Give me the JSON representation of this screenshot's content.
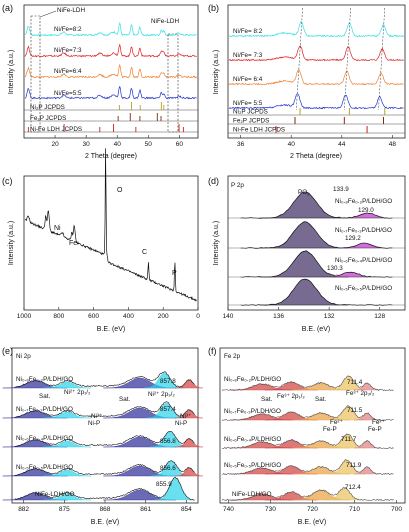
{
  "panels": [
    {
      "id": "a",
      "letter": "(a)",
      "xlabel": "2 Theta (degree)",
      "ylabel": "Intensity (a.u.)",
      "xticks": [
        "20",
        "30",
        "40",
        "50",
        "60"
      ],
      "xlim": [
        10,
        66
      ],
      "annotations": [
        "NiFe-LDH",
        "NiFe-LDH"
      ],
      "series": [
        {
          "name": "Ni/Fe=8:2",
          "color": "#35e0e8"
        },
        {
          "name": "Ni/Fe=7:3",
          "color": "#e02020"
        },
        {
          "name": "Ni/Fe=6:4",
          "color": "#f08030"
        },
        {
          "name": "Ni/Fe=5:5",
          "color": "#2233cc"
        },
        {
          "name": "Ni₂P JCPDS",
          "color": "#b8a020"
        },
        {
          "name": "Fe₂P JCPDS",
          "color": "#7a2b10"
        },
        {
          "name": "Ni-Fe LDH JCPDS",
          "color": "#cc2020"
        }
      ]
    },
    {
      "id": "b",
      "letter": "(b)",
      "xlabel": "2 Theta (degree)",
      "ylabel": "Intensity (a.u.)",
      "xticks": [
        "36",
        "40",
        "44",
        "48"
      ],
      "xlim": [
        35,
        49
      ],
      "series": [
        {
          "name": "Ni/Fe= 8:2",
          "color": "#35e0e8"
        },
        {
          "name": "Ni/Fe= 7:3",
          "color": "#e02020"
        },
        {
          "name": "Ni/Fe= 6:4",
          "color": "#f08030"
        },
        {
          "name": "Ni/Fe= 5:5",
          "color": "#2233cc"
        },
        {
          "name": "Ni₂P JCPDS",
          "color": "#b8a020"
        },
        {
          "name": "Fe₂P JCPDS",
          "color": "#7a2b10"
        },
        {
          "name": "Ni-Fe LDH JCPDS",
          "color": "#cc2020"
        }
      ]
    },
    {
      "id": "c",
      "letter": "(c)",
      "xlabel": "B.E. (eV)",
      "ylabel": "Intensity (a.u.)",
      "xticks": [
        "1000",
        "800",
        "600",
        "400",
        "200",
        "0"
      ],
      "peaks": [
        "O",
        "Ni",
        "Fe",
        "C",
        "P"
      ]
    },
    {
      "id": "d",
      "letter": "(d)",
      "xlabel": "B.E. (eV)",
      "ylabel": "Intensity (a.u.)",
      "xticks": [
        "140",
        "136",
        "132",
        "128"
      ],
      "core": "P 2p",
      "pox": "PO",
      "pox_sub": "x",
      "samples": [
        {
          "label": "Ni₀.₈Fe₀.₂P/LDH/GO",
          "peak1": "133.9",
          "peak2": "129.0"
        },
        {
          "label": "Ni₀.₇Fe₀.₃P/LDH/GO",
          "peak2": "129.2"
        },
        {
          "label": "Ni₀.₆Fe₀.₄P/LDH/GO",
          "peak2": "130.3"
        },
        {
          "label": "Ni₀.₅Fe₀.₅P/LDH/GO"
        }
      ]
    },
    {
      "id": "e",
      "letter": "(e)",
      "xlabel": "B.E. (eV)",
      "ylabel": "Intensity (a.u.)",
      "xticks": [
        "882",
        "875",
        "868",
        "861",
        "854"
      ],
      "core": "Ni 2p",
      "samples": [
        {
          "label": "Ni₀.₈Fe₀.₂P/LDH/GO",
          "value": "857.8"
        },
        {
          "label": "Ni₀.₇Fe₀.₃P/LDH/GO",
          "value": "857.4"
        },
        {
          "label": "Ni₀.₆Fe₀.₄P/LDH/GO",
          "value": "856.8"
        },
        {
          "label": "Ni₀.₅Fe₀.₅P/LDH/GO",
          "value": "856.6"
        },
        {
          "label": "NiFe-LDH/GO",
          "value": "855.9"
        }
      ],
      "annotations": {
        "sat1": "Sat.",
        "ni2p12": "Ni²⁺ 2p₁/₂",
        "sat2": "Sat.",
        "ni2p32": "Ni²⁺ 2p₃/₂",
        "nip1": "Ni³⁺",
        "nip1b": "Ni-P",
        "nip2": "Ni³⁺",
        "nip2b": "Ni-P"
      }
    },
    {
      "id": "f",
      "letter": "(f)",
      "xlabel": "B.E. (eV)",
      "ylabel": "Intensity (a.u.)",
      "xticks": [
        "740",
        "730",
        "720",
        "710",
        "700"
      ],
      "core": "Fe 2p",
      "samples": [
        {
          "label": "Ni₀.₈Fe₀.₂P/LDH/GO",
          "value": "711.4"
        },
        {
          "label": "Ni₀.₇Fe₀.₃P/LDH/GO",
          "value": "711.5"
        },
        {
          "label": "Ni₀.₆Fe₀.₄P/LDH/GO",
          "value": "711.7"
        },
        {
          "label": "Ni₀.₅Fe₀.₅P/LDH/GO",
          "value": "711.9"
        },
        {
          "label": "NiFe-LDH/GO",
          "value": "712.4"
        }
      ],
      "annotations": {
        "sat": "Sat.",
        "fe2p12": "Fe³⁺ 2p₁/₂",
        "sat2": "Sat.",
        "fe2p32": "Fe³⁺ 2p₃/₂",
        "fe2a": "Fe²⁺",
        "fe2ab": "Fe-P",
        "fe2b": "Fe²⁺",
        "fe2bb": "Fe-P"
      }
    }
  ],
  "chart_data": [
    {
      "type": "line",
      "title": "",
      "xlabel": "2 Theta (degree)",
      "ylabel": "Intensity (a.u.)",
      "xlim": [
        10,
        66
      ],
      "series": [
        {
          "name": "Ni/Fe=8:2",
          "peaks_x": [
            11.4,
            40.8,
            44.6,
            47.3,
            54.2,
            55.0
          ]
        },
        {
          "name": "Ni/Fe=7:3",
          "peaks_x": [
            11.4,
            40.8,
            44.6,
            47.3,
            54.2,
            55.0
          ]
        },
        {
          "name": "Ni/Fe=6:4",
          "peaks_x": [
            11.4,
            40.8,
            44.6,
            47.3,
            54.2,
            55.0
          ]
        },
        {
          "name": "Ni/Fe=5:5",
          "peaks_x": [
            11.4,
            40.8,
            44.6,
            47.3,
            54.2,
            55.0
          ]
        },
        {
          "name": "Ni₂P JCPDS",
          "x": [
            40.7,
            44.6,
            47.4,
            54.2,
            55.0
          ]
        },
        {
          "name": "Fe₂P JCPDS",
          "x": [
            40.3,
            44.2,
            47.3,
            52.9,
            54.1
          ]
        },
        {
          "name": "Ni-Fe LDH JCPDS",
          "x": [
            11.4,
            22.9,
            34.4,
            38.8,
            46.0,
            59.9,
            61.3
          ]
        }
      ]
    },
    {
      "type": "line",
      "title": "",
      "xlabel": "2 Theta (degree)",
      "ylabel": "Intensity (a.u.)",
      "xlim": [
        35,
        49
      ],
      "series": [
        {
          "name": "Ni/Fe= 8:2",
          "peaks_x": [
            40.8,
            44.6,
            47.3
          ]
        },
        {
          "name": "Ni/Fe= 7:3",
          "peaks_x": [
            40.7,
            44.5,
            47.2
          ]
        },
        {
          "name": "Ni/Fe= 6:4",
          "peaks_x": [
            40.6,
            44.4,
            47.1
          ]
        },
        {
          "name": "Ni/Fe= 5:5",
          "peaks_x": [
            40.5,
            44.3,
            47.0
          ]
        }
      ]
    },
    {
      "type": "line",
      "title": "",
      "xlabel": "B.E. (eV)",
      "ylabel": "Intensity (a.u.)",
      "xlim": [
        1000,
        0
      ],
      "series": [
        {
          "name": "",
          "peaks": [
            {
              "label": "O",
              "x": 531
            },
            {
              "label": "Ni",
              "x": 856
            },
            {
              "label": "Fe",
              "x": 711
            },
            {
              "label": "C",
              "x": 285
            },
            {
              "label": "P",
              "x": 133
            }
          ]
        }
      ]
    },
    {
      "type": "line",
      "title": "",
      "xlabel": "B.E. (eV)",
      "ylabel": "Intensity (a.u.)",
      "xlim": [
        140,
        126
      ],
      "series": [
        {
          "name": "Ni₀.₈Fe₀.₂P/LDH/GO",
          "peaks": [
            133.9,
            129.0
          ]
        },
        {
          "name": "Ni₀.₇Fe₀.₃P/LDH/GO",
          "peaks": [
            133.9,
            129.2
          ]
        },
        {
          "name": "Ni₀.₆Fe₀.₄P/LDH/GO",
          "peaks": [
            133.9,
            130.3
          ]
        },
        {
          "name": "Ni₀.₅Fe₀.₅P/LDH/GO",
          "peaks": [
            133.9
          ]
        }
      ]
    },
    {
      "type": "line",
      "title": "",
      "xlabel": "B.E. (eV)",
      "ylabel": "Intensity (a.u.)",
      "xlim": [
        882,
        852
      ],
      "series": [
        {
          "name": "Ni₀.₈Fe₀.₂P/LDH/GO",
          "peak": 857.8
        },
        {
          "name": "Ni₀.₇Fe₀.₃P/LDH/GO",
          "peak": 857.4
        },
        {
          "name": "Ni₀.₆Fe₀.₄P/LDH/GO",
          "peak": 856.8
        },
        {
          "name": "Ni₀.₅Fe₀.₅P/LDH/GO",
          "peak": 856.6
        },
        {
          "name": "NiFe-LDH/GO",
          "peak": 855.9
        }
      ]
    },
    {
      "type": "line",
      "title": "",
      "xlabel": "B.E. (eV)",
      "ylabel": "Intensity (a.u.)",
      "xlim": [
        740,
        700
      ],
      "series": [
        {
          "name": "Ni₀.₈Fe₀.₂P/LDH/GO",
          "peak": 711.4
        },
        {
          "name": "Ni₀.₇Fe₀.₃P/LDH/GO",
          "peak": 711.5
        },
        {
          "name": "Ni₀.₆Fe₀.₄P/LDH/GO",
          "peak": 711.7
        },
        {
          "name": "Ni₀.₅Fe₀.₅P/LDH/GO",
          "peak": 711.9
        },
        {
          "name": "NiFe-LDH/GO",
          "peak": 712.4
        }
      ]
    }
  ]
}
